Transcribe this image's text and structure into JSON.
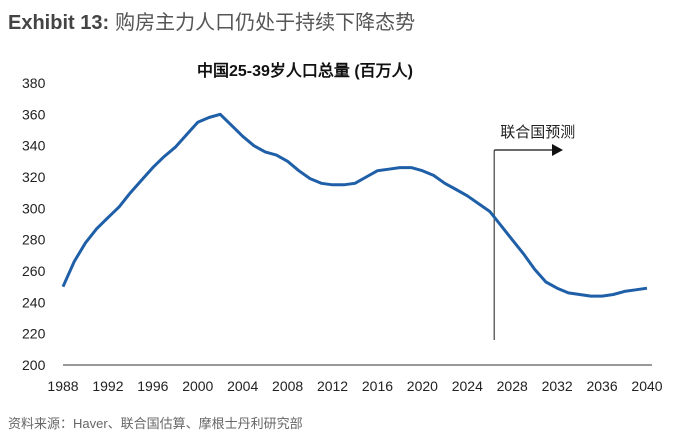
{
  "header": {
    "exhibit_label": "Exhibit 13:",
    "title": "购房主力人口仍处于持续下降态势"
  },
  "source": "资料来源：Haver、联合国估算、摩根士丹利研究部",
  "chart_data": {
    "type": "line",
    "title": "中国25-39岁人口总量 (百万人)",
    "xlabel": "",
    "ylabel": "",
    "xlim": [
      1988,
      2040
    ],
    "ylim": [
      200,
      380
    ],
    "x_ticks": [
      "1988",
      "1992",
      "1996",
      "2000",
      "2004",
      "2008",
      "2012",
      "2016",
      "2020",
      "2024",
      "2028",
      "2032",
      "2036",
      "2040"
    ],
    "y_ticks": [
      "200",
      "220",
      "240",
      "260",
      "280",
      "300",
      "320",
      "340",
      "360",
      "380"
    ],
    "grid": false,
    "line_color": "#1f5fa8",
    "x": [
      1988,
      1989,
      1990,
      1991,
      1992,
      1993,
      1994,
      1995,
      1996,
      1997,
      1998,
      1999,
      2000,
      2001,
      2002,
      2003,
      2004,
      2005,
      2006,
      2007,
      2008,
      2009,
      2010,
      2011,
      2012,
      2013,
      2014,
      2015,
      2016,
      2017,
      2018,
      2019,
      2020,
      2021,
      2022,
      2023,
      2024,
      2025,
      2026,
      2027,
      2028,
      2029,
      2030,
      2031,
      2032,
      2033,
      2034,
      2035,
      2036,
      2037,
      2038,
      2039,
      2040
    ],
    "series": [
      {
        "values": [
          250,
          266,
          278,
          287,
          294,
          301,
          310,
          318,
          326,
          333,
          339,
          347,
          355,
          358,
          360,
          353,
          346,
          340,
          336,
          334,
          330,
          324,
          319,
          316,
          315,
          315,
          316,
          320,
          324,
          325,
          326,
          326,
          324,
          321,
          316,
          312,
          308,
          303,
          298,
          289,
          280,
          271,
          261,
          253,
          249,
          246,
          245,
          244,
          244,
          245,
          247,
          248,
          249
        ]
      }
    ],
    "annotation": {
      "text": "联合国预测",
      "x": 2026.4
    }
  }
}
